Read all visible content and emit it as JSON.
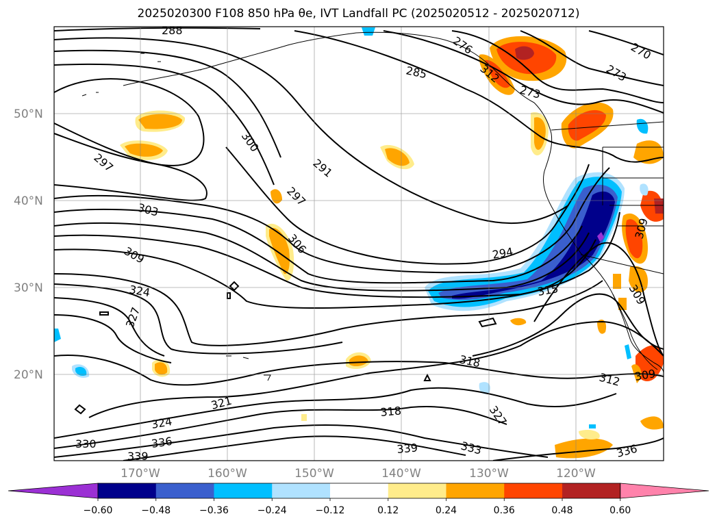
{
  "title": "2025020300 F108 850 hPa θe, IVT Landfall PC (2025020512 - 2025020712)",
  "lat_labels": [
    "50°N",
    "40°N",
    "30°N",
    "20°N"
  ],
  "lon_labels": [
    "170°W",
    "160°W",
    "150°W",
    "140°W",
    "130°W",
    "120°W"
  ],
  "contour_labels": [
    "288",
    "276",
    "270",
    "285",
    "273",
    "273",
    "312",
    "297",
    "300",
    "291",
    "297",
    "303",
    "306",
    "309",
    "294",
    "324",
    "315",
    "327",
    "318",
    "309",
    "309",
    "312",
    "321",
    "318",
    "324",
    "327",
    "330",
    "336",
    "333",
    "339",
    "339",
    "336",
    "309"
  ],
  "colorbar": {
    "colors": [
      "#9b30d4",
      "#00008b",
      "#3a5fcd",
      "#00bfff",
      "#b0e2ff",
      "#ffffff",
      "#ffec8b",
      "#ffa500",
      "#ff4500",
      "#b22222",
      "#ff82ab"
    ],
    "ticks": [
      "−0.60",
      "−0.48",
      "−0.36",
      "−0.24",
      "−0.12",
      "0.12",
      "0.24",
      "0.36",
      "0.48",
      "0.60"
    ]
  },
  "shading": {
    "colors": {
      "orange": "#ffa500",
      "yellow": "#ffec8b",
      "red": "#ff4500",
      "darkred": "#b22222",
      "lightblue": "#b0e2ff",
      "cyan": "#00bfff",
      "blue": "#3a5fcd",
      "navy": "#00008b",
      "purple": "#9b30d4"
    }
  }
}
